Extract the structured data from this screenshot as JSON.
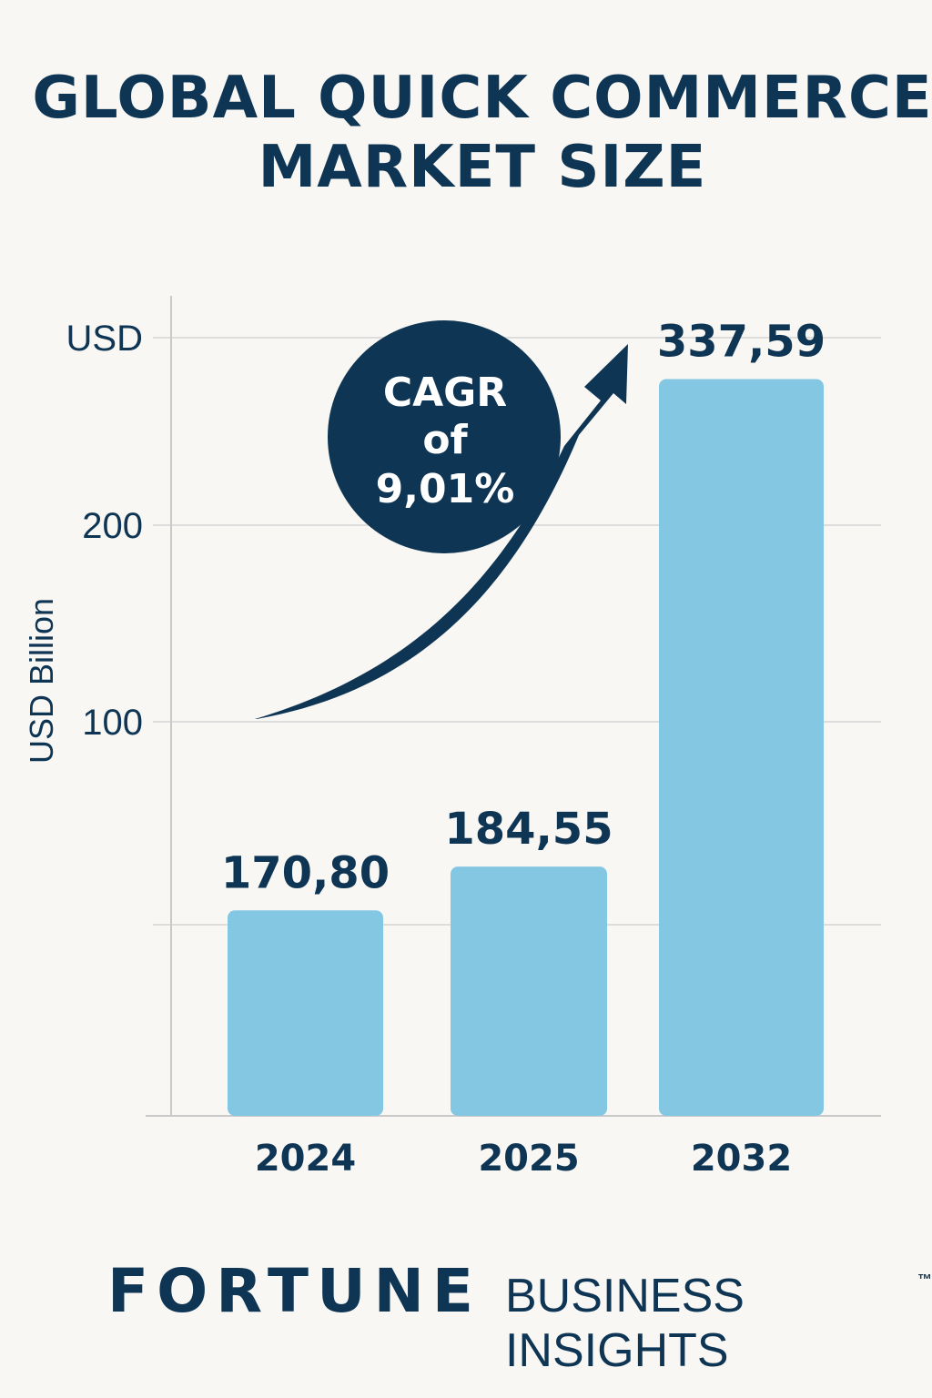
{
  "header": {
    "title_line1": "GLOBAL QUICK COMMERCE",
    "title_line2": "MARKET SIZE"
  },
  "colors": {
    "bar": "#84c7e3",
    "navy": "#0f3554",
    "grid": "#dddddd",
    "background": "#f8f7f3"
  },
  "chart_data": {
    "type": "bar",
    "title": "GLOBAL QUICK COMMERCE MARKET SIZE",
    "ylabel": "USD Billion",
    "y_tick_labels": [
      "100",
      "200",
      "USD"
    ],
    "categories": [
      "2024",
      "2025",
      "2032"
    ],
    "values": [
      170.8,
      184.55,
      337.59
    ],
    "value_labels": [
      "170,80",
      "184,55",
      "337,59"
    ],
    "grid": true,
    "annotation": {
      "lines": [
        "CAGR",
        "of",
        "9,01%"
      ],
      "shape": "circle-with-rising-arrow"
    }
  },
  "footer": {
    "brand_strong": "FORTUNE",
    "brand_rest": "BUSINESS INSIGHTS",
    "brand_tm": "™"
  }
}
